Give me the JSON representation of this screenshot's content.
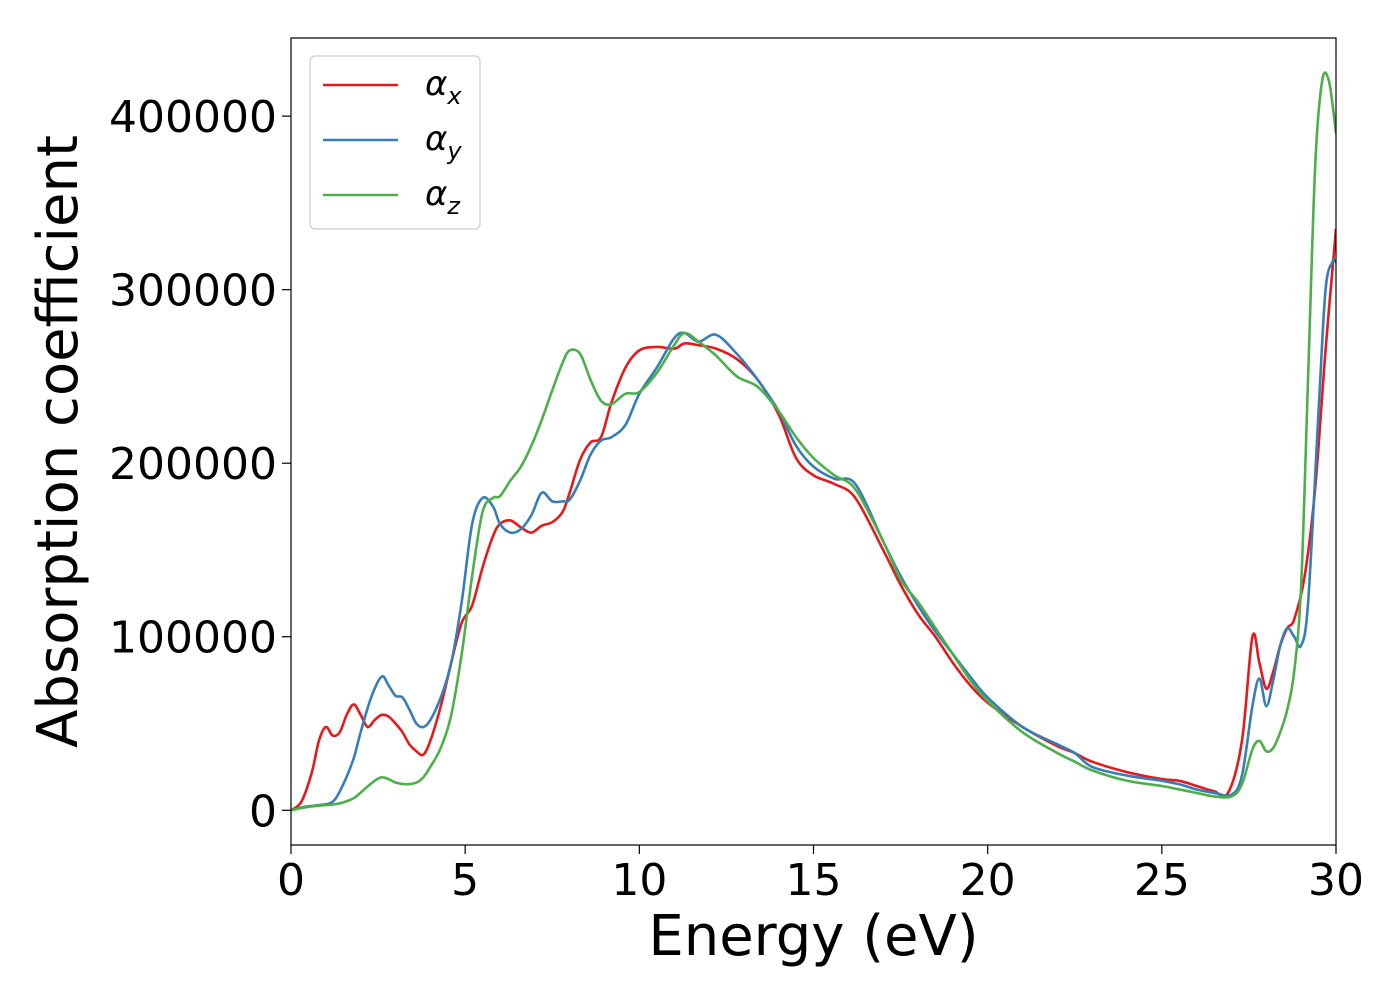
{
  "chart_data": {
    "type": "line",
    "xlabel": "Energy (eV)",
    "ylabel": "Absorption coefficient",
    "xlim": [
      0,
      30
    ],
    "ylim": [
      -20000,
      445000
    ],
    "xticks": [
      0,
      5,
      10,
      15,
      20,
      25,
      30
    ],
    "yticks": [
      0,
      100000,
      200000,
      300000,
      400000
    ],
    "grid": false,
    "legend_position": "top-left",
    "series": [
      {
        "name": "α_x",
        "name_base": "α",
        "name_sub": "x",
        "color": "#e41a1c",
        "x": [
          0.0,
          0.3,
          0.6,
          0.8,
          1.0,
          1.2,
          1.4,
          1.6,
          1.8,
          2.0,
          2.2,
          2.4,
          2.6,
          2.8,
          3.0,
          3.2,
          3.4,
          3.6,
          3.8,
          4.0,
          4.3,
          4.6,
          4.9,
          5.2,
          5.5,
          5.8,
          6.0,
          6.3,
          6.6,
          6.9,
          7.2,
          7.5,
          7.8,
          8.0,
          8.3,
          8.6,
          8.9,
          9.2,
          9.6,
          10.0,
          10.5,
          11.0,
          11.3,
          11.7,
          12.2,
          12.8,
          13.4,
          14.0,
          14.5,
          15.0,
          15.6,
          16.2,
          17.0,
          17.5,
          18.0,
          18.5,
          19.0,
          19.5,
          20.0,
          21.0,
          22.0,
          22.5,
          23.0,
          24.0,
          25.0,
          25.5,
          26.0,
          26.5,
          26.9,
          27.3,
          27.6,
          27.8,
          28.0,
          28.2,
          28.4,
          28.6,
          28.8,
          29.1,
          29.4,
          29.7,
          30.0
        ],
        "values": [
          0,
          5000,
          22000,
          40000,
          48000,
          43000,
          45000,
          55000,
          61000,
          55000,
          48000,
          52000,
          55000,
          54000,
          50000,
          45000,
          38000,
          34000,
          32000,
          40000,
          60000,
          85000,
          108000,
          118000,
          140000,
          158000,
          165000,
          167000,
          163000,
          160000,
          164000,
          166000,
          172000,
          183000,
          202000,
          212000,
          215000,
          235000,
          255000,
          265000,
          267000,
          266000,
          269000,
          268000,
          266000,
          260000,
          248000,
          228000,
          203000,
          193000,
          188000,
          180000,
          150000,
          130000,
          113000,
          100000,
          85000,
          72000,
          62000,
          48000,
          37000,
          33000,
          28000,
          22000,
          18000,
          17000,
          14000,
          11000,
          10000,
          40000,
          100000,
          85000,
          70000,
          80000,
          95000,
          105000,
          110000,
          135000,
          185000,
          265000,
          335000
        ]
      },
      {
        "name": "α_y",
        "name_base": "α",
        "name_sub": "y",
        "color": "#377eb8",
        "x": [
          0.0,
          0.4,
          0.8,
          1.2,
          1.5,
          1.8,
          2.0,
          2.3,
          2.6,
          2.8,
          3.0,
          3.2,
          3.4,
          3.6,
          3.8,
          4.0,
          4.3,
          4.6,
          4.9,
          5.2,
          5.5,
          5.8,
          6.0,
          6.3,
          6.6,
          6.9,
          7.2,
          7.5,
          7.8,
          8.0,
          8.3,
          8.6,
          8.9,
          9.2,
          9.6,
          10.0,
          10.5,
          11.0,
          11.3,
          11.7,
          12.2,
          12.8,
          13.4,
          14.0,
          14.5,
          15.0,
          15.6,
          16.2,
          17.0,
          17.5,
          18.0,
          18.5,
          19.0,
          19.5,
          20.0,
          21.0,
          22.0,
          22.5,
          23.0,
          24.0,
          25.0,
          25.5,
          26.0,
          26.5,
          27.0,
          27.3,
          27.6,
          27.8,
          28.0,
          28.2,
          28.4,
          28.6,
          28.8,
          29.0,
          29.2,
          29.5,
          29.7,
          29.9,
          30.0
        ],
        "values": [
          0,
          2000,
          3000,
          5000,
          15000,
          30000,
          45000,
          65000,
          77000,
          72000,
          66000,
          65000,
          58000,
          50000,
          48000,
          52000,
          65000,
          85000,
          120000,
          165000,
          180000,
          175000,
          165000,
          160000,
          162000,
          170000,
          183000,
          178000,
          178000,
          179000,
          190000,
          205000,
          213000,
          215000,
          222000,
          240000,
          255000,
          272000,
          275000,
          270000,
          274000,
          263000,
          248000,
          230000,
          210000,
          198000,
          191000,
          188000,
          155000,
          135000,
          118000,
          103000,
          90000,
          77000,
          65000,
          48000,
          38000,
          33000,
          25000,
          20000,
          17000,
          15000,
          12000,
          10000,
          9000,
          20000,
          60000,
          76000,
          60000,
          75000,
          95000,
          105000,
          100000,
          95000,
          120000,
          230000,
          300000,
          316000,
          316000
        ]
      },
      {
        "name": "α_z",
        "name_base": "α",
        "name_sub": "z",
        "color": "#4daf4a",
        "x": [
          0.0,
          0.5,
          1.0,
          1.4,
          1.8,
          2.1,
          2.4,
          2.6,
          2.8,
          3.0,
          3.3,
          3.6,
          3.8,
          4.0,
          4.3,
          4.6,
          4.9,
          5.2,
          5.5,
          5.8,
          6.0,
          6.3,
          6.6,
          6.9,
          7.2,
          7.5,
          7.8,
          8.0,
          8.3,
          8.6,
          8.9,
          9.2,
          9.6,
          10.0,
          10.5,
          11.0,
          11.3,
          11.7,
          12.2,
          12.8,
          13.4,
          14.0,
          14.5,
          15.0,
          15.6,
          16.2,
          17.0,
          17.5,
          18.0,
          18.5,
          19.0,
          19.5,
          20.0,
          21.0,
          22.0,
          22.5,
          23.0,
          24.0,
          25.0,
          25.5,
          26.0,
          26.5,
          27.0,
          27.3,
          27.6,
          27.8,
          28.0,
          28.2,
          28.4,
          28.6,
          28.8,
          29.0,
          29.2,
          29.4,
          29.6,
          29.8,
          30.0
        ],
        "values": [
          0,
          2000,
          3000,
          4000,
          7000,
          12000,
          17000,
          19000,
          18000,
          16000,
          15000,
          16000,
          19000,
          25000,
          36000,
          55000,
          90000,
          135000,
          172000,
          180000,
          181000,
          190000,
          198000,
          210000,
          225000,
          242000,
          258000,
          265000,
          263000,
          248000,
          236000,
          234000,
          240000,
          241000,
          252000,
          268000,
          275000,
          270000,
          262000,
          250000,
          244000,
          230000,
          215000,
          203000,
          193000,
          185000,
          155000,
          133000,
          120000,
          105000,
          90000,
          75000,
          63000,
          45000,
          33000,
          28000,
          23000,
          17000,
          14000,
          12000,
          10000,
          8000,
          8000,
          15000,
          35000,
          40000,
          34000,
          36000,
          45000,
          58000,
          80000,
          130000,
          250000,
          370000,
          420000,
          420000,
          390000
        ]
      }
    ]
  }
}
